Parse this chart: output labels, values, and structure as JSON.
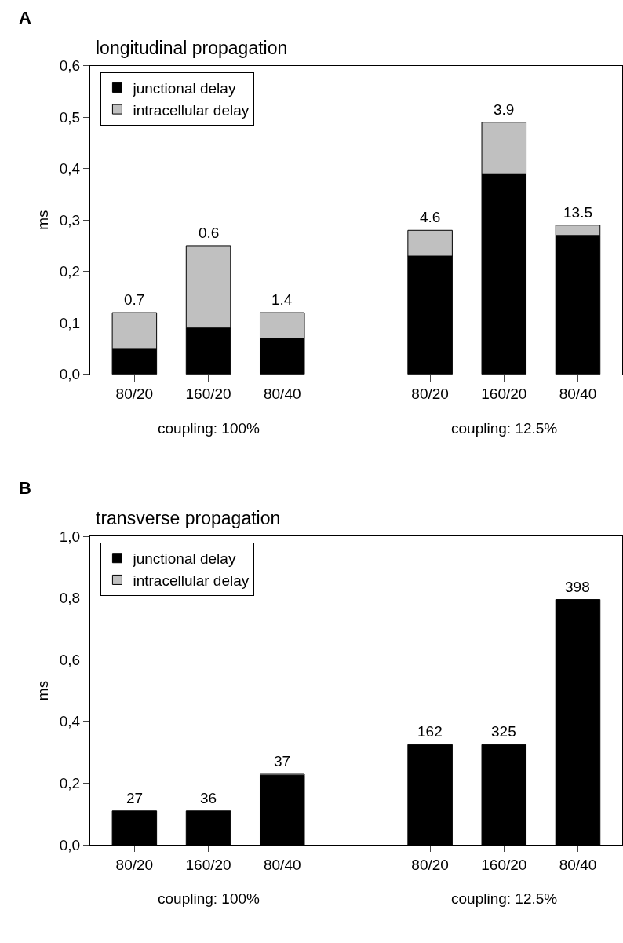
{
  "chart_data": [
    {
      "type": "bar",
      "title": "longitudinal propagation",
      "ylabel": "ms",
      "stacked": true,
      "legend": "top left",
      "categories": [
        "80/20",
        "160/20",
        "80/40",
        null,
        "80/20",
        "160/20",
        "80/40"
      ],
      "series": [
        {
          "name": "junctional delay",
          "color": "#000000",
          "values": [
            0.05,
            0.09,
            0.07,
            null,
            0.23,
            0.39,
            0.27
          ]
        },
        {
          "name": "intracellular delay",
          "color": "#c0c0c0",
          "values": [
            0.07,
            0.16,
            0.05,
            null,
            0.05,
            0.1,
            0.02
          ]
        }
      ],
      "ylim": [
        0,
        0.6
      ],
      "yticks": [
        {
          "value": 0,
          "label": "0,0"
        },
        {
          "value": 0.1,
          "label": "0,1"
        },
        {
          "value": 0.2,
          "label": "0,2"
        },
        {
          "value": 0.3,
          "label": "0,3"
        },
        {
          "value": 0.4,
          "label": "0,4"
        },
        {
          "value": 0.5,
          "label": "0,5"
        },
        {
          "value": 0.6,
          "label": "0,6"
        }
      ],
      "annotations": [
        "A",
        "coupling: 100%",
        "coupling: 12.5%",
        "0.7",
        "0.6",
        "1.4",
        "4.6",
        "3.9",
        "13.5"
      ]
    },
    {
      "type": "bar",
      "title": "transverse propagation",
      "ylabel": "ms",
      "stacked": true,
      "legend": "top left",
      "categories": [
        "80/20",
        "160/20",
        "80/40",
        null,
        "80/20",
        "160/20",
        "80/40"
      ],
      "series": [
        {
          "name": "junctional delay",
          "color": "#000000",
          "values": [
            0.11,
            0.11,
            0.225,
            null,
            0.325,
            0.325,
            0.795
          ]
        },
        {
          "name": "intracellular delay",
          "color": "#c0c0c0",
          "values": [
            null,
            null,
            0.004,
            null,
            null,
            null,
            null
          ]
        }
      ],
      "ylim": [
        0,
        1.0
      ],
      "yticks": [
        {
          "value": 0,
          "label": "0,0"
        },
        {
          "value": 0.2,
          "label": "0,2"
        },
        {
          "value": 0.4,
          "label": "0,4"
        },
        {
          "value": 0.6,
          "label": "0,6"
        },
        {
          "value": 0.8,
          "label": "0,8"
        },
        {
          "value": 1.0,
          "label": "1,0"
        }
      ],
      "annotations": [
        "B",
        "coupling: 100%",
        "coupling: 12.5%",
        "27",
        "36",
        "37",
        "162",
        "325",
        "398"
      ]
    }
  ]
}
